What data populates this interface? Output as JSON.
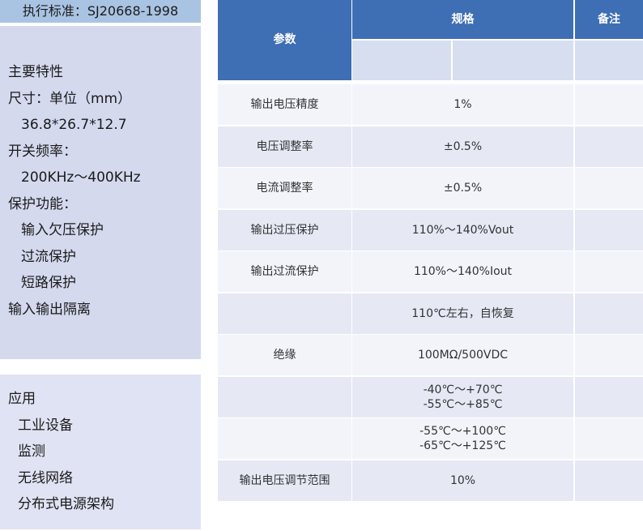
{
  "standard": "执行标准：SJ20668-1998",
  "features": {
    "title": "主要特性",
    "size_label": "尺寸：单位（mm）",
    "size_value": "36.8*26.7*12.7",
    "freq_label": "开关频率：",
    "freq_value": "200KHz～400KHz",
    "protect_label": "保护功能：",
    "protect_items": [
      "输入欠压保护",
      "过流保护",
      "短路保护"
    ],
    "isolation": "输入输出隔离"
  },
  "applications": {
    "title": "应用",
    "items": [
      "工业设备",
      "监测",
      "无线网络",
      "分布式电源架构"
    ]
  },
  "table": {
    "headers": {
      "param": "参数",
      "spec": "规格",
      "note": "备注"
    },
    "rows": [
      {
        "param": "输出电压精度",
        "spec": "1%",
        "note": ""
      },
      {
        "param": "电压调整率",
        "spec": "±0.5%",
        "note": ""
      },
      {
        "param": "电流调整率",
        "spec": "±0.5%",
        "note": ""
      },
      {
        "param": "输出过压保护",
        "spec": "110%～140%Vout",
        "note": ""
      },
      {
        "param": "输出过流保护",
        "spec": "110%～140%Iout",
        "note": ""
      },
      {
        "param": "",
        "spec": "110℃左右，自恢复",
        "note": ""
      },
      {
        "param": "绝缘",
        "spec": "100MΩ/500VDC",
        "note": ""
      },
      {
        "param": "",
        "spec_line1": "-40℃～+70℃",
        "spec_line2": "-55℃～+85℃",
        "note": ""
      },
      {
        "param": "",
        "spec_line1": "-55℃～+100℃",
        "spec_line2": "-65℃～+125℃",
        "note": ""
      },
      {
        "param": "输出电压调节范围",
        "spec": "10%",
        "note": ""
      }
    ]
  },
  "colors": {
    "header_blue": "#3e6eb4",
    "standard_bar": "#a9c3e3",
    "panel_bg": "#d4d9ee"
  }
}
